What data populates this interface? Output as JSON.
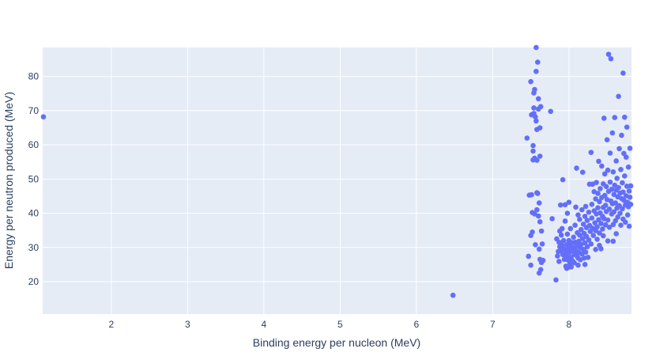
{
  "chart_data": {
    "type": "scatter",
    "title": "",
    "xlabel": "Binding energy per nucleon (MeV)",
    "ylabel": "Energy per neutron produced (MeV)",
    "xlim": [
      1.1,
      8.82
    ],
    "ylim": [
      10.5,
      88.5
    ],
    "xticks": [
      2,
      3,
      4,
      5,
      6,
      7,
      8
    ],
    "yticks": [
      20,
      30,
      40,
      50,
      60,
      70,
      80
    ],
    "grid": true,
    "legend": "none",
    "colors": {
      "plot_bg": "#e5ecf6",
      "grid": "#ffffff",
      "marker": "#636efa",
      "text": "#2a3f5f"
    },
    "series": [
      {
        "points": [
          [
            1.11,
            68.2
          ],
          [
            6.48,
            16.0
          ],
          [
            7.45,
            62.0
          ],
          [
            7.47,
            27.4
          ],
          [
            7.48,
            45.3
          ],
          [
            7.5,
            78.5
          ],
          [
            7.5,
            33.5
          ],
          [
            7.5,
            24.8
          ],
          [
            7.51,
            68.8
          ],
          [
            7.51,
            45.4
          ],
          [
            7.52,
            40.2
          ],
          [
            7.52,
            34.5
          ],
          [
            7.53,
            59.8
          ],
          [
            7.53,
            58.2
          ],
          [
            7.53,
            55.6
          ],
          [
            7.54,
            75.2
          ],
          [
            7.54,
            70.8
          ],
          [
            7.54,
            69.2
          ],
          [
            7.55,
            76.2
          ],
          [
            7.55,
            56.1
          ],
          [
            7.55,
            39.8
          ],
          [
            7.56,
            68.2
          ],
          [
            7.56,
            30.8
          ],
          [
            7.57,
            88.5
          ],
          [
            7.57,
            81.5
          ],
          [
            7.57,
            67.0
          ],
          [
            7.58,
            64.5
          ],
          [
            7.58,
            55.5
          ],
          [
            7.58,
            46.0
          ],
          [
            7.58,
            41.0
          ],
          [
            7.59,
            84.2
          ],
          [
            7.59,
            45.8
          ],
          [
            7.6,
            73.5
          ],
          [
            7.6,
            70.5
          ],
          [
            7.6,
            39.2
          ],
          [
            7.61,
            43.0
          ],
          [
            7.61,
            29.5
          ],
          [
            7.61,
            22.5
          ],
          [
            7.62,
            65.0
          ],
          [
            7.62,
            56.7
          ],
          [
            7.62,
            37.5
          ],
          [
            7.62,
            26.5
          ],
          [
            7.63,
            71.2
          ],
          [
            7.63,
            23.5
          ],
          [
            7.64,
            34.8
          ],
          [
            7.64,
            25.6
          ],
          [
            7.65,
            31.0
          ],
          [
            7.66,
            26.2
          ],
          [
            7.76,
            69.8
          ],
          [
            7.78,
            38.4
          ],
          [
            7.83,
            20.5
          ],
          [
            7.84,
            32.5
          ],
          [
            7.85,
            27.5
          ],
          [
            7.86,
            28.8
          ],
          [
            7.87,
            31.5
          ],
          [
            7.87,
            25.9
          ],
          [
            7.88,
            30.2
          ],
          [
            7.88,
            34.8
          ],
          [
            7.89,
            29.0
          ],
          [
            7.89,
            42.4
          ],
          [
            7.9,
            33.6
          ],
          [
            7.9,
            31.0
          ],
          [
            7.91,
            35.5
          ],
          [
            7.91,
            30.5
          ],
          [
            7.92,
            27.9
          ],
          [
            7.92,
            49.8
          ],
          [
            7.93,
            32.0
          ],
          [
            7.94,
            29.5
          ],
          [
            7.94,
            26.5
          ],
          [
            7.95,
            42.5
          ],
          [
            7.95,
            37.7
          ],
          [
            7.96,
            28.7
          ],
          [
            7.96,
            24.5
          ],
          [
            7.97,
            30.8
          ],
          [
            7.97,
            27.4
          ],
          [
            7.98,
            40.0
          ],
          [
            7.98,
            33.9
          ],
          [
            7.98,
            24.0
          ],
          [
            7.99,
            29.4
          ],
          [
            7.99,
            26.3
          ],
          [
            8.0,
            43.2
          ],
          [
            8.0,
            32.0
          ],
          [
            8.0,
            28.4
          ],
          [
            8.01,
            31.0
          ],
          [
            8.01,
            25.1
          ],
          [
            8.02,
            35.5
          ],
          [
            8.02,
            29.8
          ],
          [
            8.03,
            27.1
          ],
          [
            8.03,
            24.3
          ],
          [
            8.04,
            31.4
          ],
          [
            8.05,
            28.9
          ],
          [
            8.05,
            26.0
          ],
          [
            8.06,
            30.0
          ],
          [
            8.06,
            33.0
          ],
          [
            8.07,
            28.0
          ],
          [
            8.07,
            25.5
          ],
          [
            8.08,
            31.5
          ],
          [
            8.08,
            36.5
          ],
          [
            8.09,
            29.2
          ],
          [
            8.09,
            41.8
          ],
          [
            8.1,
            53.2
          ],
          [
            8.1,
            27.6
          ],
          [
            8.11,
            30.6
          ],
          [
            8.11,
            34.3
          ],
          [
            8.12,
            26.9
          ],
          [
            8.12,
            39.5
          ],
          [
            8.13,
            28.5
          ],
          [
            8.13,
            31.8
          ],
          [
            8.14,
            33.6
          ],
          [
            8.14,
            38.2
          ],
          [
            8.15,
            29.9
          ],
          [
            8.15,
            26.4
          ],
          [
            8.16,
            35.2
          ],
          [
            8.16,
            30.9
          ],
          [
            8.17,
            41.0
          ],
          [
            8.17,
            28.1
          ],
          [
            8.18,
            52.0
          ],
          [
            8.18,
            32.6
          ],
          [
            8.19,
            36.8
          ],
          [
            8.19,
            29.4
          ],
          [
            8.2,
            34.1
          ],
          [
            8.2,
            26.9
          ],
          [
            8.21,
            39.1
          ],
          [
            8.21,
            31.3
          ],
          [
            8.22,
            42.0
          ],
          [
            8.22,
            28.6
          ],
          [
            8.23,
            35.8
          ],
          [
            8.23,
            33.2
          ],
          [
            8.24,
            30.2
          ],
          [
            8.24,
            37.9
          ],
          [
            8.25,
            27.1
          ],
          [
            8.26,
            40.3
          ],
          [
            8.26,
            32.2
          ],
          [
            8.27,
            48.5
          ],
          [
            8.27,
            36.4
          ],
          [
            8.28,
            34.7
          ],
          [
            8.29,
            57.8
          ],
          [
            8.29,
            31.0
          ],
          [
            8.3,
            42.6
          ],
          [
            8.3,
            38.6
          ],
          [
            8.31,
            35.6
          ],
          [
            8.31,
            48.5
          ],
          [
            8.32,
            33.5
          ],
          [
            8.33,
            46.3
          ],
          [
            8.33,
            40.7
          ],
          [
            8.34,
            37.2
          ],
          [
            8.35,
            44.2
          ],
          [
            8.35,
            34.9
          ],
          [
            8.36,
            49.0
          ],
          [
            8.36,
            39.8
          ],
          [
            8.37,
            36.0
          ],
          [
            8.37,
            32.4
          ],
          [
            8.38,
            41.6
          ],
          [
            8.38,
            45.8
          ],
          [
            8.39,
            38.1
          ],
          [
            8.39,
            55.2
          ],
          [
            8.4,
            43.4
          ],
          [
            8.4,
            34.2
          ],
          [
            8.41,
            47.2
          ],
          [
            8.41,
            40.1
          ],
          [
            8.42,
            37.0
          ],
          [
            8.42,
            29.6
          ],
          [
            8.43,
            44.6
          ],
          [
            8.43,
            53.8
          ],
          [
            8.44,
            39.1
          ],
          [
            8.44,
            35.4
          ],
          [
            8.45,
            41.7
          ],
          [
            8.45,
            48.6
          ],
          [
            8.46,
            67.8
          ],
          [
            8.46,
            38.4
          ],
          [
            8.47,
            45.2
          ],
          [
            8.47,
            51.5
          ],
          [
            8.48,
            42.3
          ],
          [
            8.48,
            36.6
          ],
          [
            8.49,
            47.8
          ],
          [
            8.49,
            40.5
          ],
          [
            8.5,
            61.5
          ],
          [
            8.5,
            44.0
          ],
          [
            8.51,
            52.6
          ],
          [
            8.51,
            38.0
          ],
          [
            8.52,
            86.5
          ],
          [
            8.52,
            46.4
          ],
          [
            8.53,
            41.2
          ],
          [
            8.53,
            35.9
          ],
          [
            8.54,
            49.1
          ],
          [
            8.54,
            57.6
          ],
          [
            8.55,
            43.6
          ],
          [
            8.55,
            85.2
          ],
          [
            8.56,
            39.8
          ],
          [
            8.56,
            47.0
          ],
          [
            8.57,
            63.5
          ],
          [
            8.57,
            42.8
          ],
          [
            8.58,
            36.7
          ],
          [
            8.58,
            52.1
          ],
          [
            8.59,
            45.5
          ],
          [
            8.59,
            40.4
          ],
          [
            8.6,
            68.0
          ],
          [
            8.6,
            48.2
          ],
          [
            8.61,
            43.0
          ],
          [
            8.61,
            37.8
          ],
          [
            8.62,
            55.3
          ],
          [
            8.62,
            46.8
          ],
          [
            8.63,
            41.5
          ],
          [
            8.63,
            50.2
          ],
          [
            8.64,
            44.8
          ],
          [
            8.64,
            38.9
          ],
          [
            8.65,
            74.2
          ],
          [
            8.65,
            47.5
          ],
          [
            8.66,
            42.2
          ],
          [
            8.66,
            58.9
          ],
          [
            8.67,
            45.9
          ],
          [
            8.67,
            40.0
          ],
          [
            8.68,
            52.8
          ],
          [
            8.68,
            36.5
          ],
          [
            8.69,
            62.8
          ],
          [
            8.69,
            44.3
          ],
          [
            8.7,
            48.9
          ],
          [
            8.7,
            41.3
          ],
          [
            8.71,
            81.0
          ],
          [
            8.71,
            46.2
          ],
          [
            8.72,
            57.5
          ],
          [
            8.72,
            43.8
          ],
          [
            8.73,
            68.1
          ],
          [
            8.73,
            50.9
          ],
          [
            8.74,
            42.4
          ],
          [
            8.74,
            37.4
          ],
          [
            8.75,
            56.4
          ],
          [
            8.75,
            45.1
          ],
          [
            8.76,
            65.2
          ],
          [
            8.76,
            47.9
          ],
          [
            8.77,
            43.2
          ],
          [
            8.77,
            39.5
          ],
          [
            8.78,
            53.5
          ],
          [
            8.78,
            41.9
          ],
          [
            8.79,
            46.5
          ],
          [
            8.79,
            36.2
          ],
          [
            8.8,
            59.0
          ],
          [
            8.8,
            44.7
          ],
          [
            8.81,
            42.6
          ],
          [
            8.81,
            48.0
          ],
          [
            8.51,
            31.9
          ],
          [
            8.58,
            31.8
          ],
          [
            8.35,
            29.4
          ],
          [
            8.21,
            25.0
          ],
          [
            8.12,
            24.8
          ],
          [
            7.97,
            23.9
          ],
          [
            8.45,
            33.4
          ],
          [
            8.62,
            34.0
          ],
          [
            8.71,
            38.3
          ],
          [
            8.4,
            30.6
          ]
        ]
      }
    ]
  }
}
